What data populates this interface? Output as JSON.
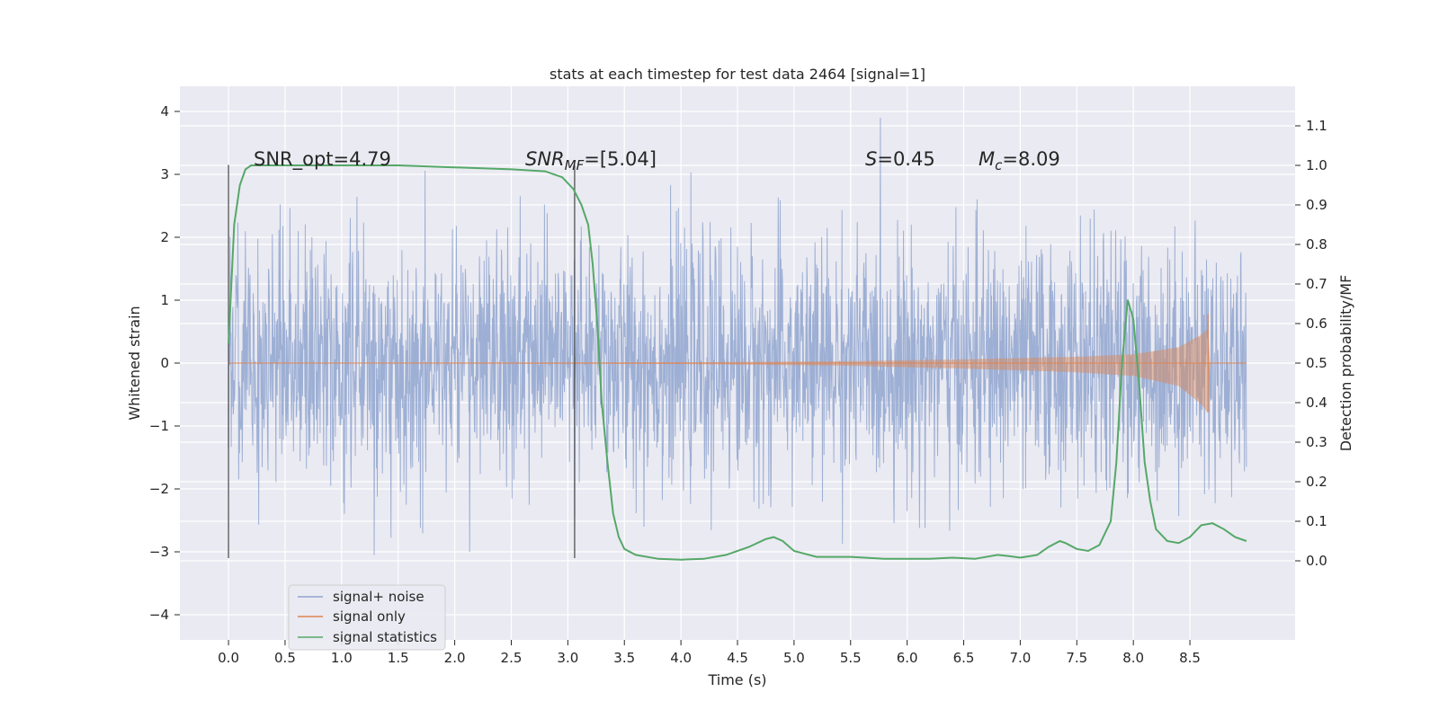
{
  "chart_data": {
    "type": "line",
    "title": "stats at each timestep for test data 2464 [signal=1]",
    "xlabel": "Time (s)",
    "ylabel": "Whitened strain",
    "ylabel_right": "Detection probability/MF",
    "xlim": [
      -0.43,
      9.43
    ],
    "ylim": [
      -4.4,
      4.4
    ],
    "ylim_right": [
      -0.2,
      1.2
    ],
    "x_ticks": [
      "0.0",
      "0.5",
      "1.0",
      "1.5",
      "2.0",
      "2.5",
      "3.0",
      "3.5",
      "4.0",
      "4.5",
      "5.0",
      "5.5",
      "6.0",
      "6.5",
      "7.0",
      "7.5",
      "8.0",
      "8.5"
    ],
    "y_ticks": [
      "4",
      "3",
      "2",
      "1",
      "0",
      "−1",
      "−2",
      "−3",
      "−4"
    ],
    "y_ticks_right": [
      "1.1",
      "1.0",
      "0.9",
      "0.8",
      "0.7",
      "0.6",
      "0.5",
      "0.4",
      "0.3",
      "0.2",
      "0.1",
      "0.0"
    ],
    "annotations": {
      "snr_opt": "SNR_opt=4.79",
      "snr_mf_base": "SNR",
      "snr_mf_sub": "MF",
      "snr_mf_value": "=[5.04]",
      "s_var": "S",
      "s_value": "=0.45",
      "mc_var": "M",
      "mc_sub": "c",
      "mc_value": "=8.09"
    },
    "vertical_markers": [
      0.0,
      3.06
    ],
    "series": [
      {
        "name": "signal+ noise",
        "color": "#8fa5cf",
        "axis": "left",
        "description": "whitened noisy strain, ~Gaussian noise with std ~1, spanning 0.0-9.0 s",
        "x_range": [
          0.0,
          9.0
        ],
        "envelope": [
          -1.0,
          1.0
        ]
      },
      {
        "name": "signal only",
        "color": "#dd8452",
        "axis": "left",
        "x_range": [
          0.0,
          8.68
        ],
        "envelope_points": [
          [
            0.0,
            0.0
          ],
          [
            4.0,
            0.01
          ],
          [
            5.5,
            0.03
          ],
          [
            6.5,
            0.06
          ],
          [
            7.5,
            0.1
          ],
          [
            8.0,
            0.14
          ],
          [
            8.4,
            0.25
          ],
          [
            8.6,
            0.45
          ],
          [
            8.66,
            0.55
          ],
          [
            8.68,
            0.0
          ]
        ]
      },
      {
        "name": "signal statistics",
        "color": "#55a868",
        "axis": "right",
        "x": [
          0.0,
          0.05,
          0.1,
          0.15,
          0.2,
          0.3,
          0.5,
          1.0,
          1.5,
          2.0,
          2.5,
          2.8,
          2.95,
          3.05,
          3.12,
          3.18,
          3.22,
          3.26,
          3.3,
          3.35,
          3.4,
          3.45,
          3.5,
          3.6,
          3.8,
          4.0,
          4.2,
          4.4,
          4.6,
          4.75,
          4.82,
          4.9,
          5.0,
          5.2,
          5.5,
          5.8,
          6.0,
          6.2,
          6.4,
          6.6,
          6.8,
          6.9,
          7.0,
          7.15,
          7.25,
          7.35,
          7.4,
          7.5,
          7.6,
          7.7,
          7.8,
          7.85,
          7.9,
          7.95,
          8.0,
          8.05,
          8.1,
          8.15,
          8.2,
          8.3,
          8.4,
          8.5,
          8.6,
          8.7,
          8.8,
          8.9,
          9.0
        ],
        "values": [
          0.55,
          0.85,
          0.95,
          0.99,
          1.0,
          1.0,
          1.0,
          1.0,
          1.0,
          0.995,
          0.99,
          0.985,
          0.97,
          0.94,
          0.9,
          0.85,
          0.75,
          0.6,
          0.4,
          0.25,
          0.12,
          0.06,
          0.03,
          0.015,
          0.005,
          0.003,
          0.005,
          0.015,
          0.035,
          0.055,
          0.06,
          0.05,
          0.025,
          0.01,
          0.01,
          0.005,
          0.005,
          0.005,
          0.008,
          0.005,
          0.015,
          0.012,
          0.008,
          0.015,
          0.035,
          0.05,
          0.045,
          0.03,
          0.025,
          0.04,
          0.1,
          0.25,
          0.5,
          0.66,
          0.61,
          0.45,
          0.25,
          0.15,
          0.08,
          0.05,
          0.045,
          0.06,
          0.09,
          0.095,
          0.08,
          0.06,
          0.05
        ]
      }
    ],
    "legend": {
      "location": "lower-left",
      "entries": [
        "signal+ noise",
        "signal only",
        "signal statistics"
      ]
    },
    "grid": true
  }
}
